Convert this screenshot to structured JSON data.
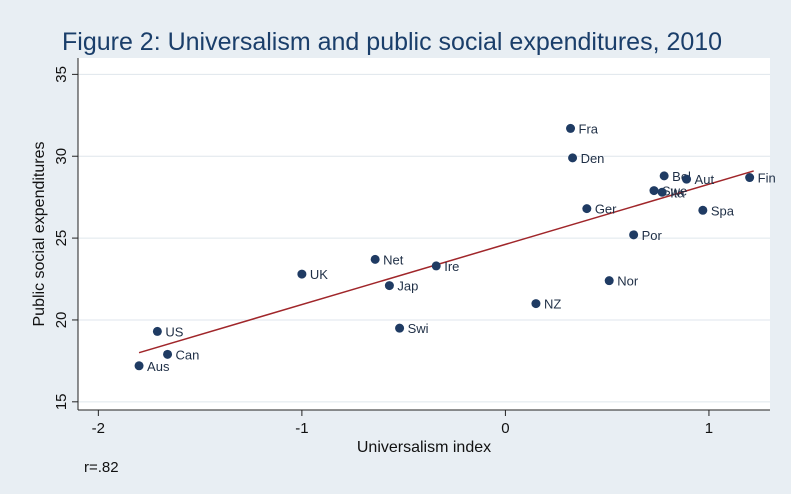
{
  "chart_data": {
    "type": "scatter",
    "title": "Figure 2: Universalism and public social expenditures, 2010",
    "xlabel": "Universalism index",
    "ylabel": "Public social expenditures",
    "xlim": [
      -2.1,
      1.3
    ],
    "ylim": [
      14.5,
      36
    ],
    "xticks": [
      -2,
      -1,
      0,
      1
    ],
    "yticks": [
      15,
      20,
      25,
      30,
      35
    ],
    "grid": true,
    "note": "r=.82",
    "points": [
      {
        "label": "Aus",
        "x": -1.8,
        "y": 17.2
      },
      {
        "label": "Can",
        "x": -1.66,
        "y": 17.9
      },
      {
        "label": "US",
        "x": -1.71,
        "y": 19.3
      },
      {
        "label": "UK",
        "x": -1.0,
        "y": 22.8
      },
      {
        "label": "Net",
        "x": -0.64,
        "y": 23.7
      },
      {
        "label": "Jap",
        "x": -0.57,
        "y": 22.1
      },
      {
        "label": "Swi",
        "x": -0.52,
        "y": 19.5
      },
      {
        "label": "Ire",
        "x": -0.34,
        "y": 23.3
      },
      {
        "label": "NZ",
        "x": 0.15,
        "y": 21.0
      },
      {
        "label": "Fra",
        "x": 0.32,
        "y": 31.7
      },
      {
        "label": "Den",
        "x": 0.33,
        "y": 29.9
      },
      {
        "label": "Ger",
        "x": 0.4,
        "y": 26.8
      },
      {
        "label": "Nor",
        "x": 0.51,
        "y": 22.4
      },
      {
        "label": "Por",
        "x": 0.63,
        "y": 25.2
      },
      {
        "label": "Swe",
        "x": 0.73,
        "y": 27.9
      },
      {
        "label": "Ita",
        "x": 0.77,
        "y": 27.8
      },
      {
        "label": "Bel",
        "x": 0.78,
        "y": 28.8
      },
      {
        "label": "Aut",
        "x": 0.89,
        "y": 28.6
      },
      {
        "label": "Spa",
        "x": 0.97,
        "y": 26.7
      },
      {
        "label": "Fin",
        "x": 1.2,
        "y": 28.7
      }
    ],
    "fit_line": {
      "x": [
        -1.8,
        1.22
      ],
      "y": [
        18.0,
        29.1
      ]
    },
    "colors": {
      "point": "#1f3b63",
      "fit": "#a0262a",
      "background": "#e8eef3",
      "plot_background": "#ffffff",
      "grid": "#dfe6ec",
      "title": "#1a3e6a"
    }
  }
}
